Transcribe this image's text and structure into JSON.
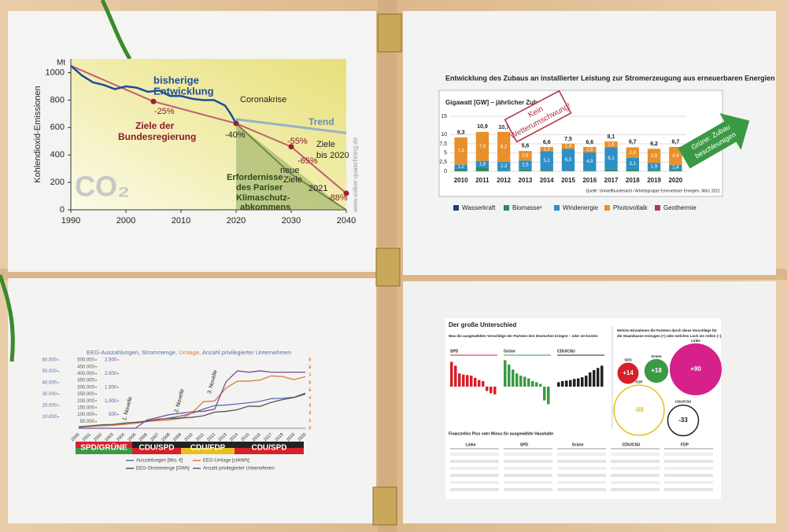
{
  "co2": {
    "unit": "Mt",
    "y_label": "Kohlendioxid-Emissionen",
    "xlim": [
      1990,
      2040
    ],
    "ylim": [
      0,
      1100
    ],
    "xticks": [
      1990,
      2000,
      2010,
      2020,
      2030,
      2040
    ],
    "yticks": [
      0,
      200,
      400,
      600,
      800,
      1000
    ],
    "history": {
      "x": [
        1990,
        1992,
        1994,
        1996,
        1998,
        2000,
        2002,
        2004,
        2006,
        2008,
        2010,
        2012,
        2014,
        2016,
        2018,
        2019,
        2020
      ],
      "values": [
        1050,
        980,
        930,
        910,
        880,
        900,
        890,
        860,
        870,
        830,
        830,
        810,
        800,
        800,
        760,
        700,
        630
      ]
    },
    "targets": {
      "x": [
        1990,
        2005,
        2020,
        2030,
        2040
      ],
      "values": [
        1050,
        790,
        630,
        460,
        120
      ]
    },
    "trend": {
      "x": [
        2020,
        2040
      ],
      "values": [
        660,
        560
      ]
    },
    "paris": {
      "x": [
        2020,
        2030,
        2040
      ],
      "values": [
        630,
        260,
        0
      ]
    },
    "annotations": [
      "bisherige",
      "Entwicklung",
      "Coronakrise",
      "Trend",
      "-25%",
      "Ziele der",
      "Bundesregierung",
      "-40%",
      "-55%",
      "Ziele",
      "bis 2020",
      "-65%",
      "neue",
      "Ziele",
      "2021",
      "Erfordernisse",
      "des Pariser",
      "Klimaschutz-",
      "abkommens",
      "-88%",
      "CO₂",
      "www.volker-quaschning.de"
    ]
  },
  "zubau": {
    "title": "Entwicklung des Zubaus an installierter Leistung zur Stromerzeugung aus erneuerbaren Energien",
    "subtitle": "Gigawatt [GW] – jährlicher Zubau",
    "categories": [
      "2010",
      "2011",
      "2012",
      "2013",
      "2014",
      "2015",
      "2016",
      "2017",
      "2018",
      "2019",
      "2020"
    ],
    "ylim": [
      0,
      15
    ],
    "yticks": [
      0,
      {
        "value": 2.5,
        "label": "2,5"
      },
      5,
      {
        "value": 7.5,
        "label": "7,5"
      },
      10,
      15
    ],
    "series": [
      {
        "name": "Wasserkraft",
        "color": "#1f3d7a",
        "values": [
          0.05,
          0.05,
          0.05,
          0.05,
          0.05,
          0.05,
          0.05,
          0.05,
          0.05,
          0.05,
          0.05
        ]
      },
      {
        "name": "Biomasse¹",
        "color": "#2e8b57",
        "values": [
          0.6,
          1.0,
          0.2,
          0.4,
          0.3,
          0.1,
          0.2,
          0.4,
          0.5,
          0.3,
          0.3
        ]
      },
      {
        "name": "Windenergie",
        "color": "#2e8fc7",
        "values": [
          1.2,
          1.8,
          2.3,
          2.5,
          5.1,
          6.0,
          4.9,
          6.1,
          3.1,
          1.9,
          1.4
        ],
        "value_labels": [
          "1,2",
          "1,8",
          "2,3",
          "2,5",
          "5,1",
          "6,0",
          "4,9",
          "6,1",
          "3,1",
          "1,9",
          "1,4"
        ]
      },
      {
        "name": "Photovoltaik",
        "color": "#e8902b",
        "values": [
          7.4,
          7.9,
          8.2,
          2.6,
          1.2,
          1.4,
          1.5,
          1.6,
          2.9,
          3.9,
          4.9
        ],
        "value_labels": [
          "7,4",
          "7,9",
          "8,2",
          "2,6",
          "1,2",
          "1,4",
          "1,5",
          "1,6",
          "2,9",
          "3,9",
          "4,9"
        ]
      },
      {
        "name": "Geothermie",
        "color": "#c0305a",
        "values": [
          0,
          0,
          0,
          0,
          0,
          0,
          0,
          0,
          0,
          0,
          0
        ]
      }
    ],
    "totals": [
      9.3,
      10.9,
      10.7,
      5.6,
      6.6,
      7.5,
      6.6,
      8.1,
      6.7,
      6.2,
      6.7
    ],
    "total_labels": [
      "9,3",
      "10,9",
      "10,7",
      "5,6",
      "6,6",
      "7,5",
      "6,6",
      "8,1",
      "6,7",
      "6,2",
      "6,7"
    ],
    "source": "Quelle: Umweltbundesamt / Arbeitsgruppe Erneuerbare Energien, März 2021",
    "note": [
      "Kein",
      "Wetterumschwung!"
    ],
    "arrow": [
      "Grüne: Zubau",
      "beschleunigen"
    ]
  },
  "eeg": {
    "title": [
      "EEG-Auszahlungen, Strommenge, ",
      "Umlage",
      ", Anzahl privilegierter Unternehmen"
    ],
    "years": [
      "2000",
      "2001",
      "2002",
      "2003",
      "2004",
      "2005",
      "2006",
      "2007",
      "2008",
      "2009",
      "2010",
      "2011",
      "2012",
      "2013",
      "2014",
      "2015",
      "2016",
      "2017",
      "2018",
      "2019",
      "2020"
    ],
    "axis1": {
      "lim": [
        0,
        60000
      ],
      "ticks": [
        {
          "value": 10000,
          "label": "10.000"
        },
        {
          "value": 20000,
          "label": "20.000"
        },
        {
          "value": 30000,
          "label": "30.000"
        },
        {
          "value": 40000,
          "label": "40.000"
        },
        {
          "value": 50000,
          "label": "50.000"
        },
        {
          "value": 60000,
          "label": "60.000"
        }
      ]
    },
    "axis2": {
      "lim": [
        0,
        500000
      ],
      "ticks": [
        {
          "value": 50000,
          "label": "50.000"
        },
        {
          "value": 100000,
          "label": "100.000"
        },
        {
          "value": 150000,
          "label": "150.000"
        },
        {
          "value": 200000,
          "label": "200.000"
        },
        {
          "value": 250000,
          "label": "250.000"
        },
        {
          "value": 300000,
          "label": "300.000"
        },
        {
          "value": 350000,
          "label": "350.000"
        },
        {
          "value": 400000,
          "label": "400.000"
        },
        {
          "value": 450000,
          "label": "450.000"
        },
        {
          "value": 500000,
          "label": "500.000"
        }
      ]
    },
    "axis3": {
      "lim": [
        0,
        2500
      ],
      "ticks": [
        500,
        {
          "value": 1000,
          "label": "1.000"
        },
        {
          "value": 1500,
          "label": "1.500"
        },
        {
          "value": 2000,
          "label": "2.000"
        },
        {
          "value": 2500,
          "label": "2.500"
        }
      ]
    },
    "axis4": {
      "lim": [
        0,
        9
      ],
      "ticks": [
        0,
        1,
        2,
        3,
        4,
        5,
        6,
        7,
        8,
        9
      ]
    },
    "series": [
      {
        "name": "Auszahlungen [Mio. €]",
        "color": "#5a6fa8",
        "axis": "axis1",
        "values": [
          900,
          1600,
          2200,
          2600,
          3600,
          4400,
          5800,
          7600,
          9000,
          10800,
          13200,
          16800,
          20000,
          20400,
          21400,
          22400,
          23600,
          26000,
          26400,
          27200,
          30900
        ]
      },
      {
        "name": "EEG-Umlage [ct/kWh]",
        "color": "#e07a3a",
        "axis": "axis4",
        "values": [
          0.2,
          0.25,
          0.35,
          0.4,
          0.5,
          0.7,
          0.9,
          1.0,
          1.1,
          1.3,
          2.0,
          3.5,
          3.6,
          5.3,
          6.2,
          6.2,
          6.35,
          6.9,
          6.8,
          6.4,
          6.8
        ]
      },
      {
        "name": "EEG-Strommenge [GWh]",
        "color": "#555555",
        "axis": "axis2",
        "values": [
          10000,
          18000,
          25000,
          28000,
          38000,
          44000,
          52000,
          67000,
          71000,
          75000,
          80000,
          91000,
          118000,
          124000,
          136000,
          162000,
          160000,
          190000,
          210000,
          225000,
          250000
        ]
      },
      {
        "name": "Anzahl privilegierter Unternehmen",
        "color": "#7a4a9a",
        "axis": "axis3",
        "values": [
          0,
          0,
          0,
          0,
          0,
          0,
          300,
          400,
          500,
          550,
          600,
          620,
          700,
          1700,
          2100,
          2050,
          2100,
          2050,
          2050,
          2050,
          2050
        ]
      }
    ],
    "novellen": [
      "1. Novelle",
      "2. Novelle",
      "3. Novelle"
    ],
    "coalitions": [
      "SPD/GRÜNE",
      "CDU/SPD",
      "CDU/FDP",
      "CDU/SPD"
    ]
  },
  "unterschied": {
    "title": "Der große Unterschied",
    "subtitle": "Was die ausgewählten Vorschläge der Parteien den Deutschen bringen – oder sie kosten",
    "right_header": [
      "Welche Einnahmen die Parteien durch diese Vorschläge für",
      "die Staatskasse erzeugen (+) oder welches Loch sie reißen (–)"
    ],
    "groups": [
      {
        "name": "SPD",
        "color": "#d6202a",
        "values": [
          4.5,
          3.8,
          2.4,
          2.2,
          2.1,
          2.0,
          1.6,
          1.2,
          1.0,
          -0.8,
          -1.2,
          -1.4
        ]
      },
      {
        "name": "Grüne",
        "color": "#3a9a44",
        "values": [
          4.8,
          4.0,
          3.1,
          2.4,
          2.0,
          1.8,
          1.5,
          1.0,
          0.8,
          0.5,
          -2.5,
          -3.2
        ]
      },
      {
        "name": "CDU/CSU",
        "color": "#222222",
        "values": [
          0.8,
          1.0,
          1.1,
          1.2,
          1.4,
          1.5,
          1.7,
          2.0,
          2.6,
          3.0,
          3.4,
          3.8
        ]
      }
    ],
    "bubbles": [
      {
        "name": "SPD",
        "color": "#d6202a",
        "value": 14,
        "label": "+14"
      },
      {
        "name": "Grüne",
        "color": "#3a9a44",
        "value": 18,
        "label": "+18"
      },
      {
        "name": "Linke",
        "color": "#d6208a",
        "value": 90,
        "label": "+90"
      },
      {
        "name": "FDP",
        "color": "#e8c020",
        "value": -88,
        "label": "-88"
      },
      {
        "name": "CDU/CSU",
        "color": "#222222",
        "value": -33,
        "label": "-33"
      }
    ],
    "table_title": "Finanzielles Plus oder Minus für ausgewählte Haushalte",
    "table_parties": [
      "Linke",
      "SPD",
      "Grüne",
      "CDU/CSU",
      "FDP"
    ]
  }
}
